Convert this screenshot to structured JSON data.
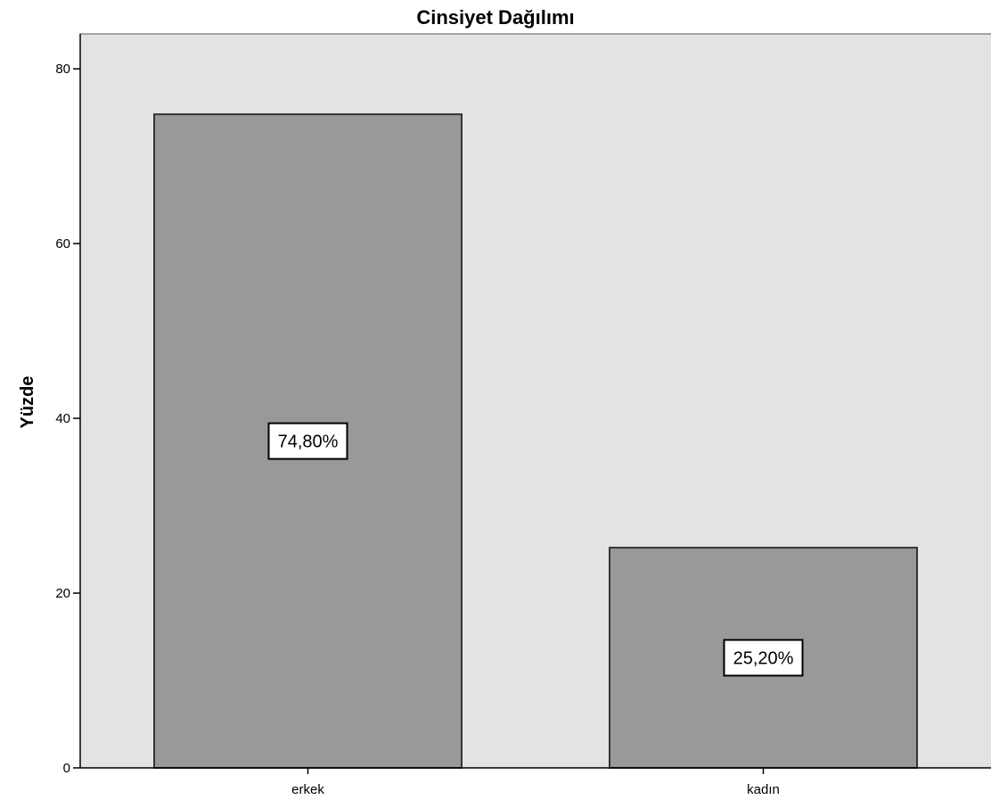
{
  "chart_data": {
    "type": "bar",
    "title": "Cinsiyet Dağılımı",
    "xlabel": "",
    "ylabel": "Yüzde",
    "categories": [
      "erkek",
      "kadın"
    ],
    "values": [
      74.8,
      25.2
    ],
    "data_labels": [
      "74,80%",
      "25,20%"
    ],
    "ylim": [
      0,
      84
    ],
    "yticks": [
      0,
      20,
      40,
      60,
      80
    ],
    "ytick_labels": [
      "0",
      "20",
      "40",
      "60",
      "80"
    ],
    "grid": false,
    "legend": "none",
    "colors": {
      "plot_background": "#e3e3e3",
      "bar_fill": "#999999",
      "bar_stroke": "#333333",
      "axis": "#000000",
      "label_box_fill": "#ffffff"
    }
  }
}
